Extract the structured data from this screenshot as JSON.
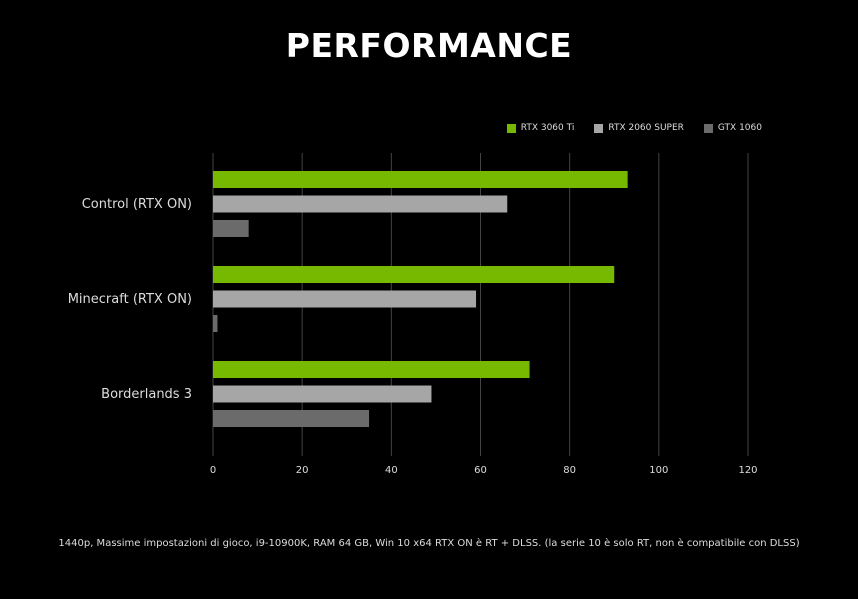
{
  "title": "PERFORMANCE",
  "footnote": "1440p, Massime impostazioni di gioco, i9-10900K, RAM 64 GB, Win 10 x64 RTX ON è RT + DLSS. (la serie 10 è solo RT, non è compatibile con DLSS)",
  "colors": {
    "background": "#000000",
    "gridline": "#444444",
    "axis_text": "#dddddd"
  },
  "chart_data": {
    "type": "bar",
    "orientation": "horizontal",
    "title": "PERFORMANCE",
    "categories": [
      "Control (RTX ON)",
      "Minecraft (RTX ON)",
      "Borderlands 3"
    ],
    "series": [
      {
        "name": "RTX 3060 Ti",
        "color": "#76b900",
        "values": [
          93,
          90,
          71
        ]
      },
      {
        "name": "RTX 2060 SUPER",
        "color": "#a6a6a6",
        "values": [
          66,
          59,
          49
        ]
      },
      {
        "name": "GTX 1060",
        "color": "#6b6b6b",
        "values": [
          8,
          1,
          35
        ]
      }
    ],
    "xlim": [
      0,
      120
    ],
    "xticks": [
      0,
      20,
      40,
      60,
      80,
      100,
      120
    ],
    "xlabel": "",
    "ylabel": "",
    "grid": "vertical",
    "legend_position": "top-right"
  }
}
